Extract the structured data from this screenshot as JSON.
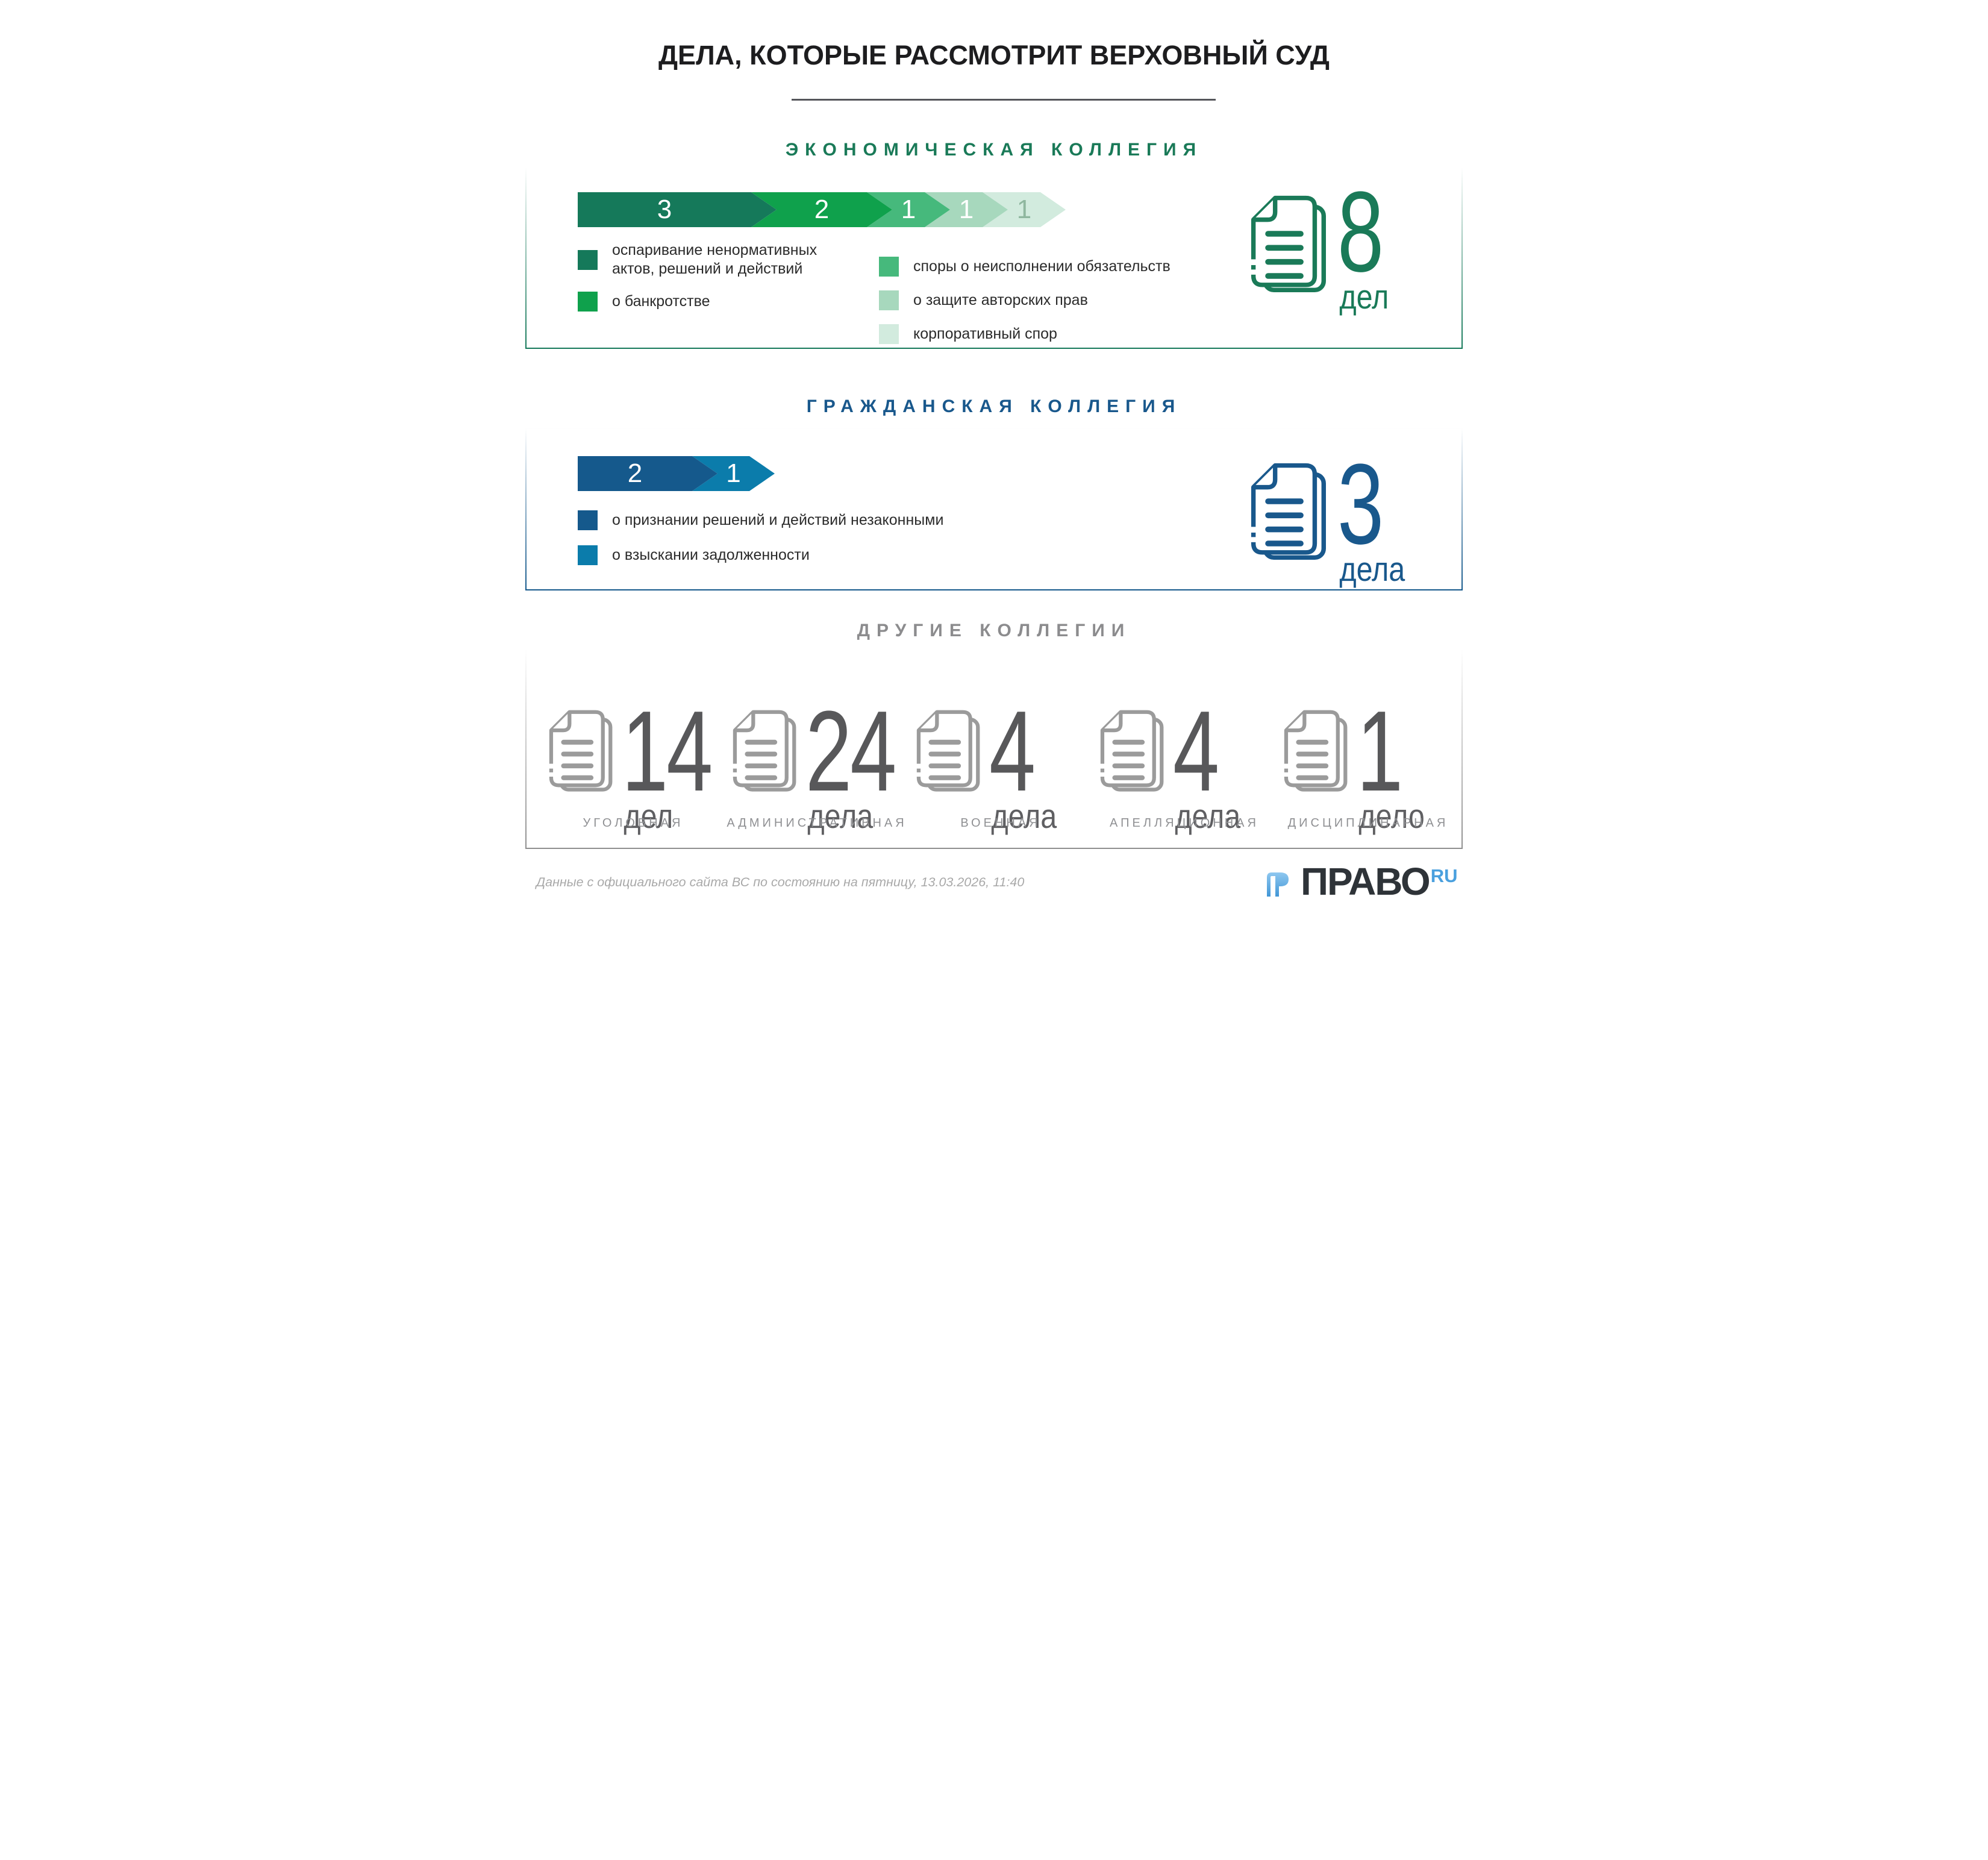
{
  "title": "ДЕЛА, КОТОРЫЕ РАССМОТРИТ ВЕРХОВНЫЙ СУД",
  "economic": {
    "title": "ЭКОНОМИЧЕСКАЯ КОЛЛЕГИЯ",
    "accent": "#1A7A58",
    "segments": [
      {
        "value": "3",
        "color": "#15795A",
        "label_color": "#FFFFFF"
      },
      {
        "value": "2",
        "color": "#0FA14C",
        "label_color": "#FFFFFF"
      },
      {
        "value": "1",
        "color": "#46B97C",
        "label_color": "#FFFFFF"
      },
      {
        "value": "1",
        "color": "#A7D8BD",
        "label_color": "#FFFFFF"
      },
      {
        "value": "1",
        "color": "#D2EBDE",
        "label_color": "#8FB79F"
      }
    ],
    "legend_left": [
      {
        "color": "#15795A",
        "label": "оспаривание ненормативных\nактов, решений и действий"
      },
      {
        "color": "#0FA14C",
        "label": "о банкротстве"
      }
    ],
    "legend_right": [
      {
        "color": "#46B97C",
        "label": "споры о неисполнении обязательств"
      },
      {
        "color": "#A7D8BD",
        "label": "о защите авторских прав"
      },
      {
        "color": "#D2EBDE",
        "label": "корпоративный спор"
      }
    ],
    "total_value": "8",
    "total_unit": "дел"
  },
  "civil": {
    "title": "ГРАЖДАНСКАЯ КОЛЛЕГИЯ",
    "accent": "#19588C",
    "segments": [
      {
        "value": "2",
        "color": "#15598C",
        "label_color": "#FFFFFF"
      },
      {
        "value": "1",
        "color": "#0B7CAB",
        "label_color": "#FFFFFF"
      }
    ],
    "legend_left": [
      {
        "color": "#15598C",
        "label": "о признании решений и действий незаконными"
      },
      {
        "color": "#0B7CAB",
        "label": "о взыскании задолженности"
      }
    ],
    "total_value": "3",
    "total_unit": "дела"
  },
  "others": {
    "title": "ДРУГИЕ КОЛЛЕГИИ",
    "icon_color": "#9B9B9B",
    "number_color": "#58585A",
    "items": [
      {
        "value": "14",
        "unit": "дел",
        "label": "УГОЛОВНАЯ"
      },
      {
        "value": "24",
        "unit": "дела",
        "label": "АДМИНИСТРАТИВНАЯ"
      },
      {
        "value": "4",
        "unit": "дела",
        "label": "ВОЕННАЯ"
      },
      {
        "value": "4",
        "unit": "дела",
        "label": "АПЕЛЛЯЦИОННАЯ"
      },
      {
        "value": "1",
        "unit": "дело",
        "label": "ДИСЦИПЛИНАРНАЯ"
      }
    ]
  },
  "footer": {
    "source": "Данные с официального сайта ВС по состоянию на пятницу, 13.03.2026, 11:40",
    "logo_text": "ПРАВО",
    "logo_suffix": "RU"
  },
  "chart_data": [
    {
      "type": "bar",
      "variant": "chevron-ribbon-stacked",
      "title": "ЭКОНОМИЧЕСКАЯ КОЛЛЕГИЯ",
      "total": 8,
      "total_label": "8 дел",
      "categories": [
        "оспаривание ненормативных актов, решений и действий",
        "о банкротстве",
        "споры о неисполнении обязательств",
        "о защите авторских прав",
        "корпоративный спор"
      ],
      "values": [
        3,
        2,
        1,
        1,
        1
      ],
      "colors": [
        "#15795A",
        "#0FA14C",
        "#46B97C",
        "#A7D8BD",
        "#D2EBDE"
      ],
      "legend_position": "below",
      "grid": false
    },
    {
      "type": "bar",
      "variant": "chevron-ribbon-stacked",
      "title": "ГРАЖДАНСКАЯ КОЛЛЕГИЯ",
      "total": 3,
      "total_label": "3 дела",
      "categories": [
        "о признании решений и действий незаконными",
        "о взыскании задолженности"
      ],
      "values": [
        2,
        1
      ],
      "colors": [
        "#15598C",
        "#0B7CAB"
      ],
      "legend_position": "below",
      "grid": false
    },
    {
      "type": "table",
      "variant": "pictogram-counts",
      "title": "ДРУГИЕ КОЛЛЕГИИ",
      "categories": [
        "УГОЛОВНАЯ",
        "АДМИНИСТРАТИВНАЯ",
        "ВОЕННАЯ",
        "АПЕЛЛЯЦИОННАЯ",
        "ДИСЦИПЛИНАРНАЯ"
      ],
      "values": [
        14,
        24,
        4,
        4,
        1
      ],
      "units": [
        "дел",
        "дела",
        "дела",
        "дела",
        "дело"
      ]
    }
  ]
}
